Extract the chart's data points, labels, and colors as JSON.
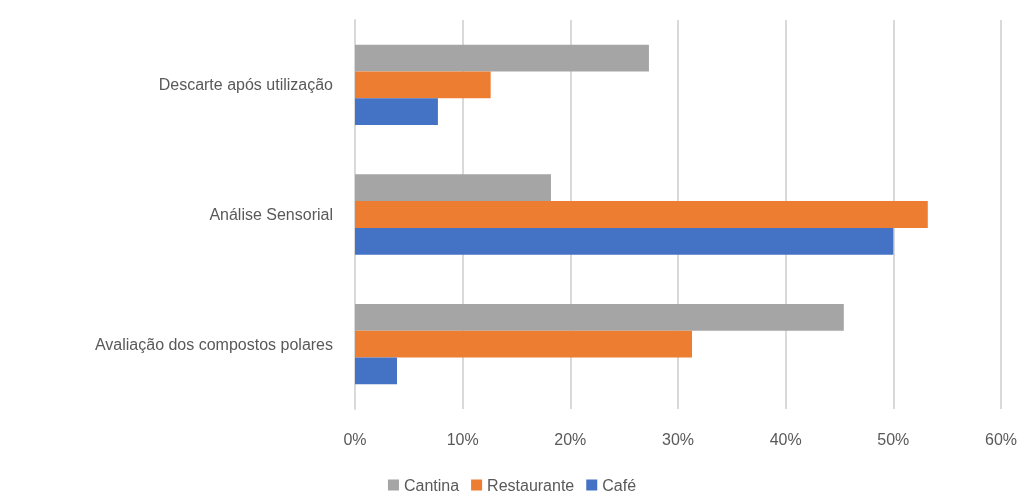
{
  "chart_data": {
    "type": "bar",
    "orientation": "horizontal",
    "categories": [
      "Descarte após utilização",
      "Análise Sensorial",
      "Avaliação dos compostos polares"
    ],
    "series": [
      {
        "name": "Cantina",
        "color": "#a5a5a5",
        "values": [
          27.3,
          18.2,
          45.4
        ]
      },
      {
        "name": "Restaurante",
        "color": "#ed7d31",
        "values": [
          12.6,
          53.2,
          31.3
        ]
      },
      {
        "name": "Café",
        "color": "#4472c4",
        "values": [
          7.7,
          50.0,
          3.9
        ]
      }
    ],
    "xlim": [
      0,
      60
    ],
    "xticks": [
      {
        "value": 0,
        "label": "0%"
      },
      {
        "value": 10,
        "label": "10%"
      },
      {
        "value": 20,
        "label": "20%"
      },
      {
        "value": 30,
        "label": "30%"
      },
      {
        "value": 40,
        "label": "40%"
      },
      {
        "value": 50,
        "label": "50%"
      },
      {
        "value": 60,
        "label": "60%"
      }
    ],
    "grid": "x",
    "legend": "bottom"
  }
}
